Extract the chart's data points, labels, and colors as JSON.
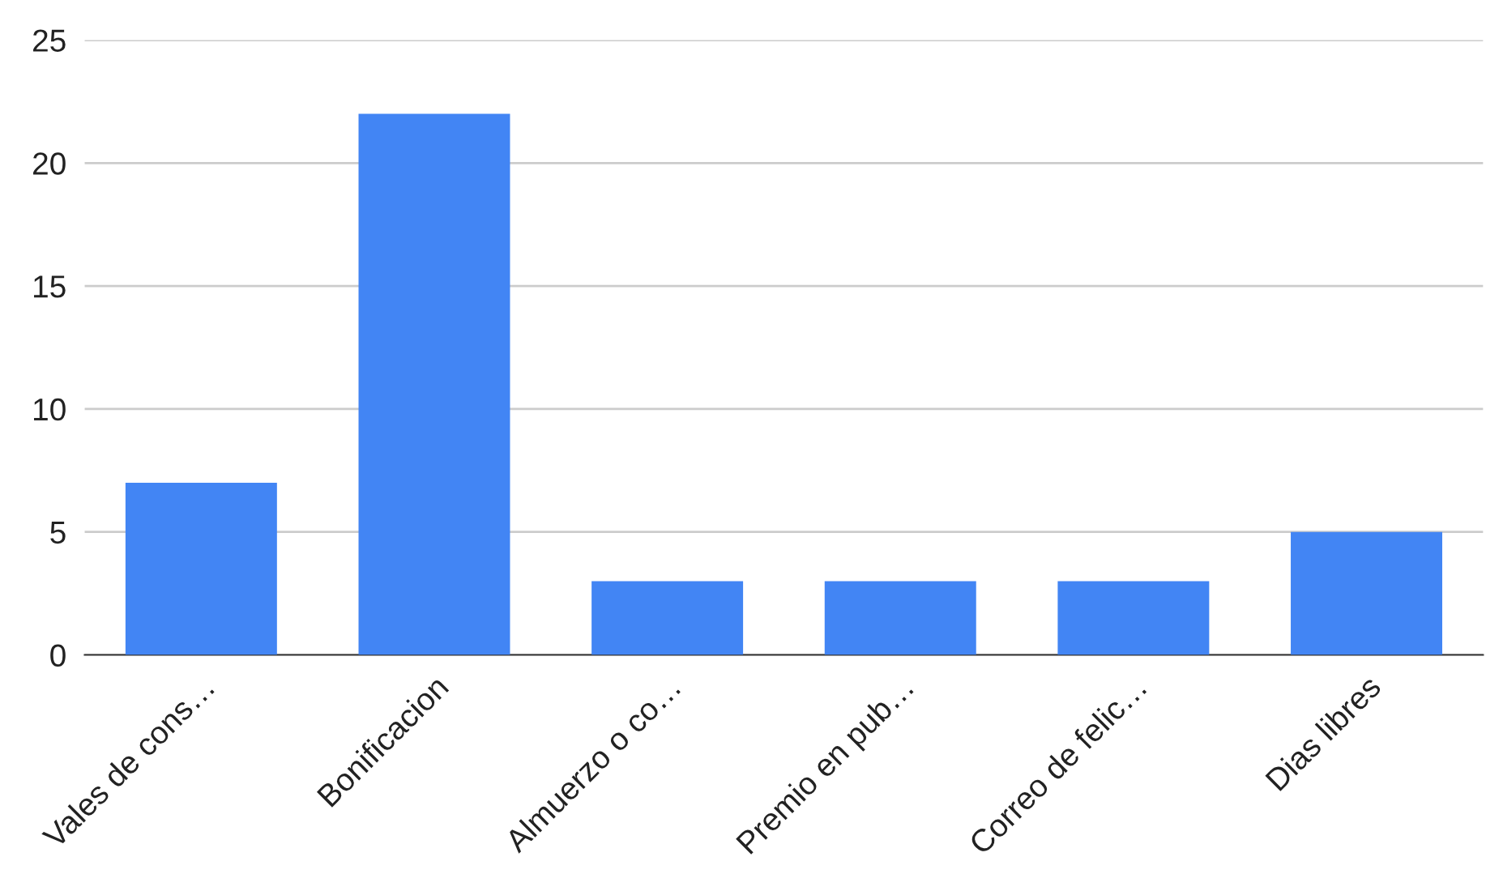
{
  "chart_data": {
    "type": "bar",
    "categories": [
      "Vales de cons…",
      "Bonificacion",
      "Almuerzo o co…",
      "Premio en pub…",
      "Correo de felic…",
      "Dias libres"
    ],
    "values": [
      7,
      22,
      3,
      3,
      3,
      5
    ],
    "color": "#4285f4",
    "ylim": [
      0,
      25
    ],
    "yticks": [
      0,
      5,
      10,
      15,
      20,
      25
    ],
    "grid": "y",
    "legend": false
  }
}
